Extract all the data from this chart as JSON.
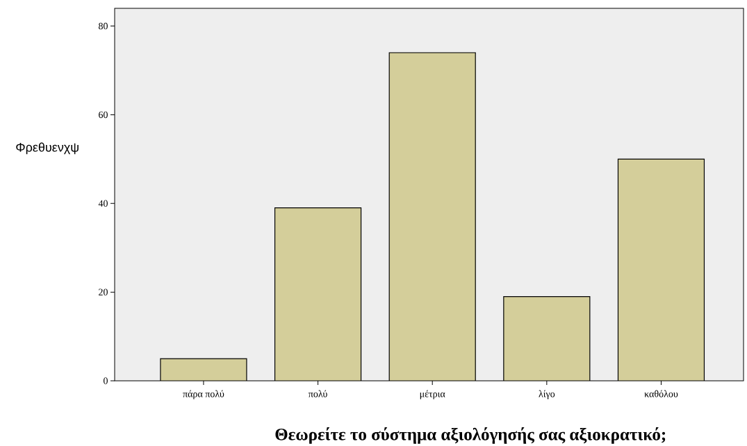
{
  "chart_data": {
    "type": "bar",
    "xlabel": "Θεωρείτε το σύστημα αξιολόγησής σας αξιοκρατικό;",
    "ylabel": "Φρεθυενχψ",
    "categories": [
      "πάρα πολύ",
      "πολύ",
      "μέτρια",
      "λίγο",
      "καθόλου"
    ],
    "values": [
      5,
      39,
      74,
      19,
      50
    ],
    "color": "#d4ce9a",
    "ylim": [
      0,
      84
    ],
    "yticks": [
      0,
      20,
      40,
      60,
      80
    ]
  }
}
